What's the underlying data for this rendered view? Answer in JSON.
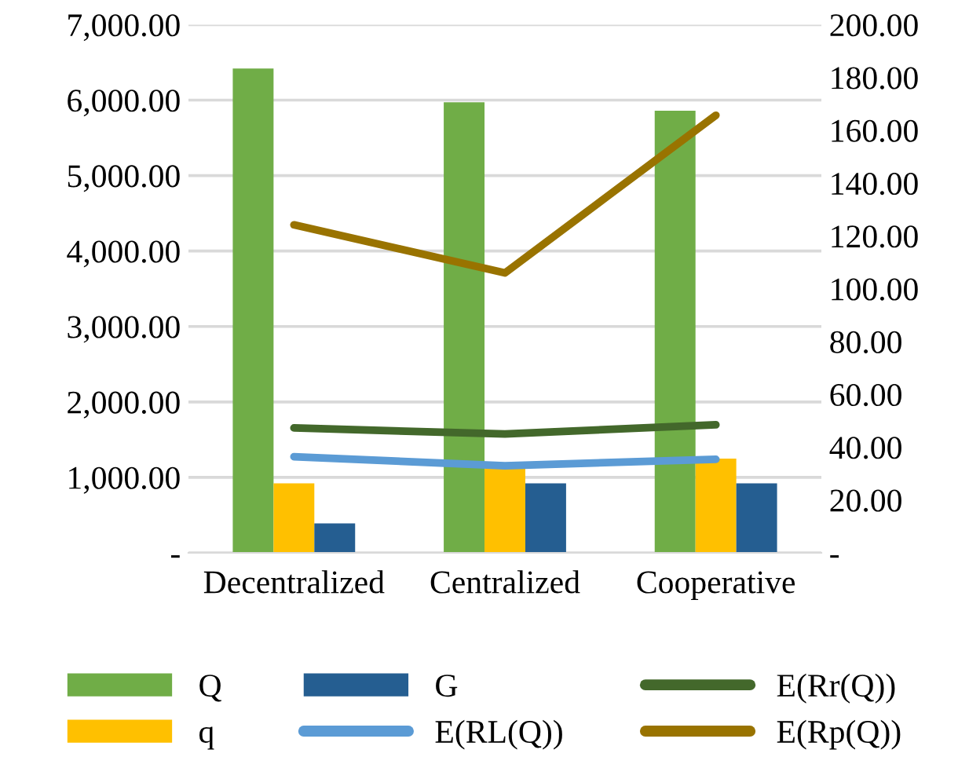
{
  "chart_data": {
    "type": "bar",
    "categories": [
      "Decentralized",
      "Centralized",
      "Cooperative"
    ],
    "series": [
      {
        "name": "Q",
        "color": "#70ad47",
        "values": [
          6420,
          5970,
          5860
        ]
      },
      {
        "name": "q",
        "color": "#ffc000",
        "values": [
          920,
          1120,
          1250
        ]
      },
      {
        "name": "G",
        "color": "#255e91",
        "values": [
          390,
          920,
          920
        ]
      },
      {
        "name": "E(RL(Q))",
        "type": "line",
        "axis": "y2",
        "color": "#5b9bd5",
        "values": [
          36.4,
          33,
          35.4
        ]
      },
      {
        "name": "E(Rr(Q))",
        "type": "line",
        "axis": "y2",
        "color": "#43682b",
        "values": [
          47.3,
          45,
          48.5
        ]
      },
      {
        "name": "E(Rp(Q))",
        "type": "line",
        "axis": "y2",
        "color": "#997300",
        "values": [
          124.2,
          106,
          165.7
        ]
      }
    ],
    "ylim": [
      0,
      7000
    ],
    "yticks": [
      {
        "value": 0,
        "label": "-"
      },
      {
        "value": 1000,
        "label": "1,000.00"
      },
      {
        "value": 2000,
        "label": "2,000.00"
      },
      {
        "value": 3000,
        "label": "3,000.00"
      },
      {
        "value": 4000,
        "label": "4,000.00"
      },
      {
        "value": 5000,
        "label": "5,000.00"
      },
      {
        "value": 6000,
        "label": "6,000.00"
      },
      {
        "value": 7000,
        "label": "7,000.00"
      }
    ],
    "y2lim": [
      0,
      200
    ],
    "y2ticks": [
      {
        "value": 0,
        "label": "-"
      },
      {
        "value": 20,
        "label": "20.00"
      },
      {
        "value": 40,
        "label": "40.00"
      },
      {
        "value": 60,
        "label": "60.00"
      },
      {
        "value": 80,
        "label": "80.00"
      },
      {
        "value": 100,
        "label": "100.00"
      },
      {
        "value": 120,
        "label": "120.00"
      },
      {
        "value": 140,
        "label": "140.00"
      },
      {
        "value": 160,
        "label": "160.00"
      },
      {
        "value": 180,
        "label": "180.00"
      },
      {
        "value": 200,
        "label": "200.00"
      }
    ],
    "grid": "y",
    "legend": "bottom",
    "line_style": "solid",
    "marker": "none"
  }
}
